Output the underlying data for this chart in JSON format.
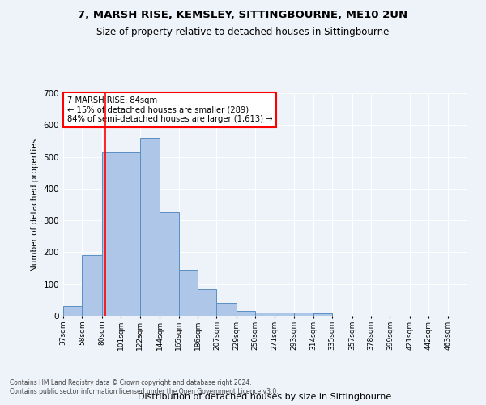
{
  "title1": "7, MARSH RISE, KEMSLEY, SITTINGBOURNE, ME10 2UN",
  "title2": "Size of property relative to detached houses in Sittingbourne",
  "xlabel": "Distribution of detached houses by size in Sittingbourne",
  "ylabel": "Number of detached properties",
  "footnote1": "Contains HM Land Registry data © Crown copyright and database right 2024.",
  "footnote2": "Contains public sector information licensed under the Open Government Licence v3.0.",
  "annotation_title": "7 MARSH RISE: 84sqm",
  "annotation_line1": "← 15% of detached houses are smaller (289)",
  "annotation_line2": "84% of semi-detached houses are larger (1,613) →",
  "bar_color": "#aec6e8",
  "bar_edge_color": "#5a8fc2",
  "ref_line_x": 84,
  "categories": [
    "37sqm",
    "58sqm",
    "80sqm",
    "101sqm",
    "122sqm",
    "144sqm",
    "165sqm",
    "186sqm",
    "207sqm",
    "229sqm",
    "250sqm",
    "271sqm",
    "293sqm",
    "314sqm",
    "335sqm",
    "357sqm",
    "378sqm",
    "399sqm",
    "421sqm",
    "442sqm",
    "463sqm"
  ],
  "values": [
    30,
    190,
    515,
    515,
    560,
    327,
    145,
    85,
    40,
    15,
    10,
    10,
    10,
    7,
    0,
    0,
    0,
    0,
    0,
    0,
    0
  ],
  "bin_edges_sqm": [
    37,
    58,
    80,
    101,
    122,
    144,
    165,
    186,
    207,
    229,
    250,
    271,
    293,
    314,
    335,
    357,
    378,
    399,
    421,
    442,
    463,
    484
  ],
  "ylim": [
    0,
    700
  ],
  "yticks": [
    0,
    100,
    200,
    300,
    400,
    500,
    600,
    700
  ],
  "background_color": "#eef2f9",
  "grid_color": "#ffffff"
}
